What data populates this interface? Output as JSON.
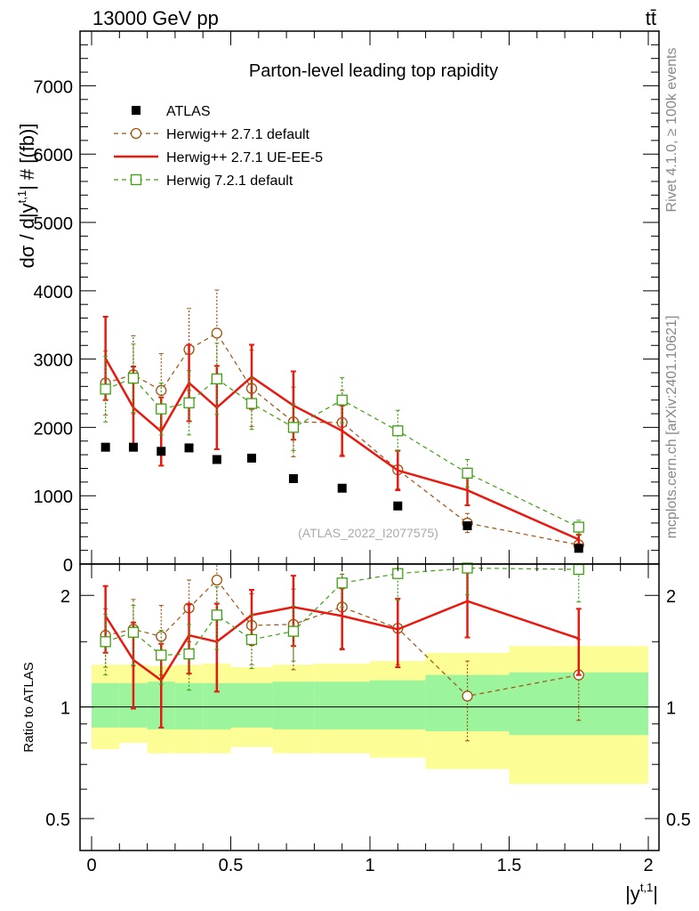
{
  "header": {
    "energy_label": "13000 GeV pp",
    "process_label": "tt̄"
  },
  "side_labels": {
    "rivet": "Rivet 4.1.0, ≥ 100k events",
    "mcplots": "mcplots.cern.ch [arXiv:2401.10621]"
  },
  "colors": {
    "atlas": "#000000",
    "herwig_pp_default": "#a0520f",
    "herwig_pp_ueee5": "#e8190f",
    "herwig_72": "#3ca00f",
    "band_inner": "#9cf59c",
    "band_outer": "#fdfd96"
  },
  "chart_data": [
    {
      "type": "scatter",
      "name": "main",
      "title": "Parton-level leading top rapidity",
      "ylabel": "dσ / d|y^{t,1}| # [(fb)]",
      "ylabel_parts": [
        "dσ / d|y",
        "t,1",
        "| # [(fb)]"
      ],
      "xlim": [
        0,
        2
      ],
      "ylim": [
        0,
        7800
      ],
      "yticks": [
        0,
        1000,
        2000,
        3000,
        4000,
        5000,
        6000,
        7000
      ],
      "ytick_labels": [
        "0",
        "1000",
        "2000",
        "3000",
        "4000",
        "5000",
        "6000",
        "7000"
      ],
      "watermark": "(ATLAS_2022_I2077575)",
      "x": [
        0.05,
        0.15,
        0.25,
        0.35,
        0.45,
        0.575,
        0.725,
        0.9,
        1.1,
        1.35,
        1.75
      ],
      "series": [
        {
          "name": "ATLAS",
          "style": "data",
          "values": [
            1710,
            1710,
            1650,
            1700,
            1530,
            1550,
            1250,
            1110,
            850,
            560,
            230
          ]
        },
        {
          "name": "Herwig++ 2.7.1 default",
          "style": "circle-dashed",
          "values": [
            2650,
            2770,
            2540,
            3140,
            3380,
            2570,
            2080,
            2070,
            1380,
            600,
            280
          ],
          "err": [
            470,
            570,
            540,
            600,
            630,
            560,
            510,
            470,
            280,
            140,
            70
          ]
        },
        {
          "name": "Herwig++ 2.7.1 UE-EE-5",
          "style": "solid",
          "values": [
            3010,
            2290,
            1940,
            2650,
            2290,
            2740,
            2320,
            1950,
            1370,
            1080,
            360
          ],
          "err": [
            610,
            600,
            500,
            560,
            610,
            470,
            500,
            370,
            290,
            220,
            70
          ]
        },
        {
          "name": "Herwig 7.2.1 default",
          "style": "square-dashed",
          "values": [
            2560,
            2720,
            2270,
            2360,
            2710,
            2350,
            2000,
            2400,
            1950,
            1330,
            540
          ],
          "err": [
            480,
            500,
            380,
            470,
            520,
            380,
            340,
            330,
            300,
            200,
            100
          ]
        }
      ]
    },
    {
      "type": "scatter",
      "name": "ratio",
      "ylabel": "Ratio to ATLAS",
      "xlabel": "|y^{t,1}|",
      "xlabel_parts": [
        "|y",
        "t,1",
        "|"
      ],
      "xlim": [
        0,
        2
      ],
      "ylim": [
        0.41,
        2.43
      ],
      "yscale": "log",
      "yticks": [
        0.5,
        1,
        2
      ],
      "ytick_labels": [
        "0.5",
        "1",
        "2"
      ],
      "xticks": [
        0,
        0.5,
        1,
        1.5,
        2
      ],
      "xtick_labels": [
        "0",
        "0.5",
        "1",
        "1.5",
        "2"
      ],
      "x": [
        0.05,
        0.15,
        0.25,
        0.35,
        0.45,
        0.575,
        0.725,
        0.9,
        1.1,
        1.35,
        1.75
      ],
      "band_edges": [
        0,
        0.1,
        0.2,
        0.3,
        0.4,
        0.5,
        0.65,
        0.8,
        1.0,
        1.2,
        1.5,
        2.0
      ],
      "band_inner_low": [
        0.88,
        0.88,
        0.87,
        0.87,
        0.87,
        0.88,
        0.87,
        0.87,
        0.87,
        0.86,
        0.84
      ],
      "band_inner_high": [
        1.16,
        1.16,
        1.17,
        1.16,
        1.16,
        1.16,
        1.17,
        1.17,
        1.18,
        1.22,
        1.24
      ],
      "band_outer_low": [
        0.77,
        0.8,
        0.75,
        0.75,
        0.75,
        0.78,
        0.75,
        0.75,
        0.73,
        0.68,
        0.62
      ],
      "band_outer_high": [
        1.3,
        1.3,
        1.29,
        1.3,
        1.31,
        1.28,
        1.3,
        1.31,
        1.33,
        1.4,
        1.46
      ],
      "series": [
        {
          "name": "Herwig++ 2.7.1 default",
          "style": "circle-dashed",
          "values": [
            1.56,
            1.62,
            1.55,
            1.85,
            2.2,
            1.66,
            1.67,
            1.86,
            1.63,
            1.07,
            1.22
          ],
          "err": [
            0.28,
            0.33,
            0.33,
            0.35,
            0.41,
            0.36,
            0.41,
            0.42,
            0.33,
            0.26,
            0.3
          ]
        },
        {
          "name": "Herwig++ 2.7.1 UE-EE-5",
          "style": "solid",
          "values": [
            1.76,
            1.34,
            1.18,
            1.56,
            1.5,
            1.77,
            1.86,
            1.76,
            1.62,
            1.93,
            1.53
          ],
          "err": [
            0.36,
            0.35,
            0.3,
            0.33,
            0.4,
            0.3,
            0.4,
            0.33,
            0.34,
            0.39,
            0.31
          ]
        },
        {
          "name": "Herwig 7.2.1 default",
          "style": "square-dashed",
          "values": [
            1.5,
            1.59,
            1.38,
            1.39,
            1.77,
            1.52,
            1.6,
            2.16,
            2.29,
            2.37,
            2.35
          ],
          "err": [
            0.28,
            0.29,
            0.23,
            0.28,
            0.34,
            0.25,
            0.27,
            0.3,
            0.35,
            0.36,
            0.43
          ]
        }
      ]
    }
  ]
}
